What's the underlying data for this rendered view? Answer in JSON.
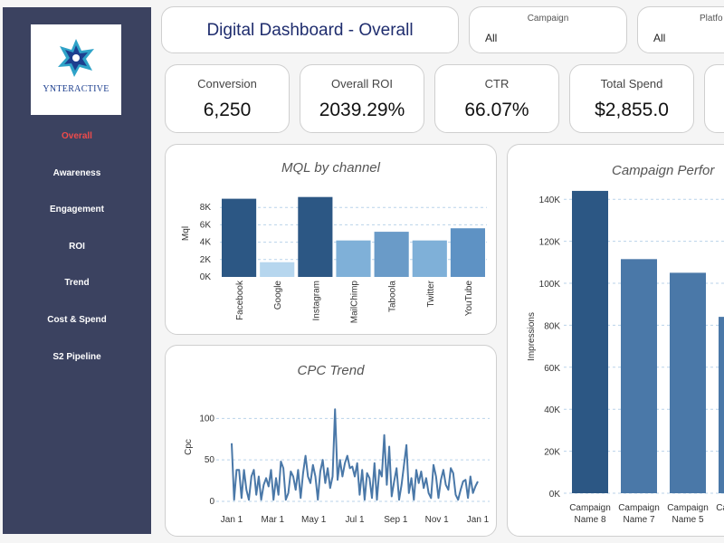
{
  "sidebar": {
    "logo_text": "YNTERACTIVE",
    "items": [
      {
        "label": "Overall",
        "active": true
      },
      {
        "label": "Awareness"
      },
      {
        "label": "Engagement"
      },
      {
        "label": "ROI"
      },
      {
        "label": "Trend"
      },
      {
        "label": "Cost & Spend"
      },
      {
        "label": "S2 Pipeline"
      }
    ]
  },
  "header": {
    "title": "Digital Dashboard - Overall"
  },
  "filters": {
    "campaign": {
      "label": "Campaign",
      "value": "All"
    },
    "platform": {
      "label": "Platfo",
      "value": "All"
    }
  },
  "kpis": {
    "conversion": {
      "label": "Conversion",
      "value": "6,250"
    },
    "roi": {
      "label": "Overall ROI",
      "value": "2039.29%"
    },
    "ctr": {
      "label": "CTR",
      "value": "66.07%"
    },
    "spend": {
      "label": "Total Spend",
      "value": "$2,855.0"
    }
  },
  "colors": {
    "sidebar_bg": "#3b4260",
    "active_nav": "#ee4b4b",
    "bar_dark": "#2c5784",
    "line": "#4a78a8"
  },
  "chart_data": [
    {
      "type": "bar",
      "title": "MQL by channel",
      "ylabel": "Mql",
      "categories": [
        "Facebook",
        "Google",
        "Instagram",
        "MailChimp",
        "Taboola",
        "Twitter",
        "YouTube"
      ],
      "values": [
        9000,
        1700,
        9200,
        4200,
        5200,
        4200,
        5600
      ],
      "colors": [
        "#2c5784",
        "#b6d6ee",
        "#2c5784",
        "#7fb0d8",
        "#6a9bc8",
        "#7fb0d8",
        "#5e92c4"
      ],
      "ylim": [
        0,
        10000
      ],
      "yticks": [
        0,
        2000,
        4000,
        6000,
        8000
      ],
      "ytick_labels": [
        "0K",
        "2K",
        "4K",
        "6K",
        "8K"
      ]
    },
    {
      "type": "line",
      "title": "CPC Trend",
      "ylabel": "Cpc",
      "ylim": [
        0,
        120
      ],
      "yticks": [
        0,
        50,
        100
      ],
      "ytick_labels": [
        "0",
        "50",
        "100"
      ],
      "xtick_labels": [
        "Jan 1",
        "Mar 1",
        "May 1",
        "Jul 1",
        "Sep 1",
        "Nov 1",
        "Jan 1"
      ],
      "values": [
        70,
        2,
        38,
        38,
        4,
        38,
        14,
        2,
        30,
        38,
        8,
        30,
        2,
        20,
        28,
        18,
        38,
        2,
        28,
        8,
        48,
        40,
        2,
        10,
        36,
        30,
        14,
        38,
        4,
        34,
        55,
        30,
        22,
        44,
        30,
        2,
        36,
        50,
        22,
        40,
        16,
        30,
        111,
        26,
        50,
        30,
        46,
        55,
        40,
        42,
        30,
        46,
        8,
        38,
        2,
        34,
        28,
        4,
        46,
        2,
        38,
        30,
        80,
        20,
        66,
        6,
        24,
        40,
        2,
        20,
        44,
        68,
        10,
        28,
        2,
        38,
        22,
        36,
        16,
        28,
        10,
        4,
        44,
        30,
        4,
        26,
        38,
        20,
        14,
        40,
        34,
        8,
        2,
        14,
        24,
        26,
        4,
        30,
        10,
        18,
        24
      ]
    },
    {
      "type": "bar",
      "title": "Campaign Perfor",
      "ylabel": "Impressions",
      "categories": [
        "Campaign Name 8",
        "Campaign Name 7",
        "Campaign Name 5",
        "Campaign N"
      ],
      "cat_line1": [
        "Campaign",
        "Campaign",
        "Campaign",
        "Campaign"
      ],
      "cat_line2": [
        "Name 8",
        "Name 7",
        "Name 5",
        "N"
      ],
      "values": [
        144000,
        111500,
        105000,
        84000
      ],
      "colors": [
        "#2c5784",
        "#4a78a8",
        "#4a78a8",
        "#4a78a8"
      ],
      "ylim": [
        0,
        150000
      ],
      "yticks": [
        0,
        20000,
        40000,
        60000,
        80000,
        100000,
        120000,
        140000
      ],
      "ytick_labels": [
        "0K",
        "20K",
        "40K",
        "60K",
        "80K",
        "100K",
        "120K",
        "140K"
      ]
    }
  ]
}
